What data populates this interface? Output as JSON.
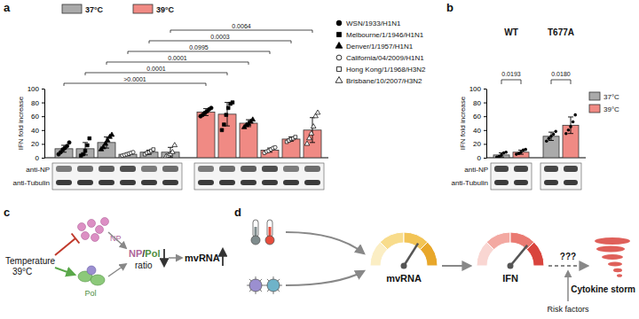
{
  "chart_data": [
    {
      "type": "bar",
      "panel": "a",
      "ylabel": "IFN fold increase",
      "categories": [
        "37°C",
        "39°C"
      ],
      "series": [
        {
          "name": "WSN/1933/H1N1",
          "marker": "circle",
          "colors": [
            "#aaaaaa",
            "#f08a84"
          ],
          "values": [
            13,
            66
          ],
          "errors": [
            5,
            5
          ],
          "points": [
            [
              5,
              8,
              12,
              14,
              17,
              22
            ],
            [
              60,
              62,
              65,
              67,
              70,
              72
            ]
          ]
        },
        {
          "name": "Melbourne/1/1946/H1N1",
          "marker": "square",
          "colors": [
            "#aaaaaa",
            "#f08a84"
          ],
          "values": [
            13,
            63
          ],
          "errors": [
            9,
            17
          ],
          "points": [
            [
              3,
              5,
              10,
              18,
              28
            ],
            [
              40,
              48,
              62,
              72,
              78,
              80
            ]
          ]
        },
        {
          "name": "Denver/1/1957/H1N1",
          "marker": "triangle",
          "colors": [
            "#aaaaaa",
            "#f08a84"
          ],
          "values": [
            22,
            50
          ],
          "errors": [
            8,
            5
          ],
          "points": [
            [
              12,
              15,
              20,
              25,
              30,
              33
            ],
            [
              44,
              47,
              49,
              52,
              55
            ]
          ]
        },
        {
          "name": "California/04/2009/H1N1",
          "marker": "circle-open",
          "colors": [
            "#aaaaaa",
            "#f08a84"
          ],
          "values": [
            5,
            11
          ],
          "errors": [
            2,
            3
          ],
          "points": [
            [
              3,
              4,
              5,
              6,
              7,
              8
            ],
            [
              7,
              9,
              10,
              12,
              14,
              15
            ]
          ]
        },
        {
          "name": "Hong Kong/1/1968/H3N2",
          "marker": "square-open",
          "colors": [
            "#aaaaaa",
            "#f08a84"
          ],
          "values": [
            8,
            27
          ],
          "errors": [
            3,
            3
          ],
          "points": [
            [
              5,
              7,
              8,
              10,
              12
            ],
            [
              23,
              25,
              27,
              28,
              30
            ]
          ]
        },
        {
          "name": "Brisbane/10/2007/H3N2",
          "marker": "triangle-open",
          "colors": [
            "#aaaaaa",
            "#f08a84"
          ],
          "values": [
            8,
            40
          ],
          "errors": [
            7,
            18
          ],
          "points": [
            [
              2,
              3,
              5,
              8,
              18
            ],
            [
              20,
              28,
              35,
              45,
              60,
              65
            ]
          ]
        }
      ],
      "annotations": [
        ">0.0001",
        "0.0001",
        "0.0001",
        "0.0995",
        "0.0003",
        "0.0064"
      ],
      "blot_labels": [
        "anti-NP",
        "anti-Tubulin"
      ],
      "ylim": [
        0,
        100
      ],
      "yticks": [
        0,
        20,
        40,
        60,
        80,
        100
      ],
      "legend": "top-right",
      "tick_labels": "y"
    },
    {
      "type": "bar",
      "panel": "b",
      "ylabel": "IFN fold increase",
      "categories": [
        "WT",
        "T677A"
      ],
      "series": [
        {
          "name": "37°C",
          "color": "#aaaaaa",
          "values": [
            4,
            31
          ],
          "errors": [
            3,
            6
          ],
          "points": [
            [
              1,
              2,
              4,
              7,
              8
            ],
            [
              24,
              28,
              31,
              34,
              38
            ]
          ]
        },
        {
          "name": "39°C",
          "color": "#f08a84",
          "values": [
            8,
            47
          ],
          "errors": [
            3,
            12
          ],
          "points": [
            [
              5,
              6,
              8,
              11,
              12
            ],
            [
              35,
              40,
              45,
              52,
              62
            ]
          ]
        }
      ],
      "annotations": [
        "0.0193",
        "0.0180"
      ],
      "blot_labels": [
        "anti-NP",
        "anti-Tubulin"
      ],
      "ylim": [
        0,
        100
      ],
      "yticks": [
        0,
        20,
        40,
        60,
        80,
        100
      ],
      "legend": "right"
    }
  ],
  "diagrams": [
    {
      "panel": "c",
      "temperature": "Temperature",
      "temperature_value": "39°C",
      "np": "NP",
      "pol": "Pol",
      "ratio_np": "NP",
      "ratio_slash": "/",
      "ratio_pol": "Pol",
      "ratio": "ratio",
      "mvrna": "mvRNA"
    },
    {
      "panel": "d",
      "mvrna": "mvRNA",
      "ifn": "IFN",
      "unknown": "???",
      "risk": "Risk factors",
      "storm": "Cytokine storm"
    }
  ]
}
